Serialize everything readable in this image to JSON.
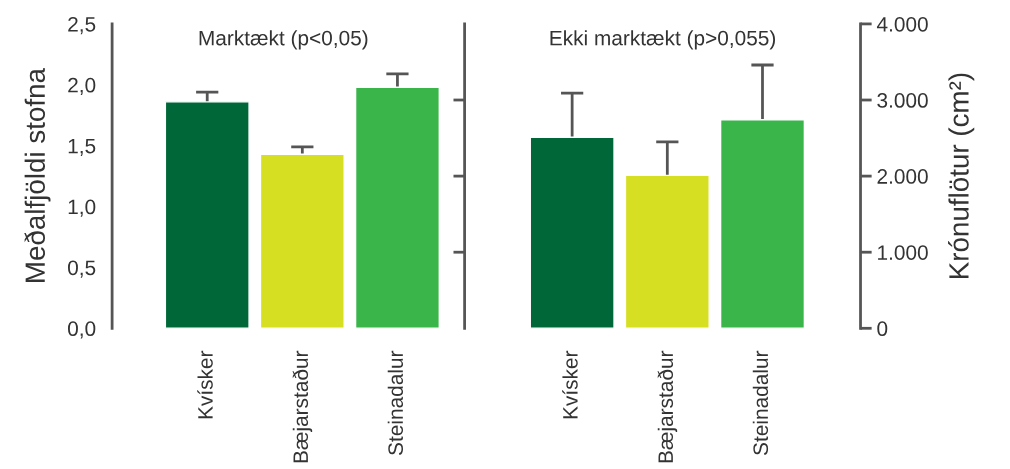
{
  "chart_data": [
    {
      "type": "bar",
      "ylabel": "Meðalfjöldi stofna",
      "annotations": [
        "Marktækt (p<0,05)"
      ],
      "categories": [
        "Kvísker",
        "Bæjarstaður",
        "Steinadalur"
      ],
      "series": [
        {
          "values": [
            1.86,
            1.43,
            1.98
          ],
          "colors": [
            "#006838",
            "#d7df23",
            "#39b54a"
          ],
          "errors": [
            0.08,
            0.06,
            0.11
          ]
        }
      ],
      "ylim": [
        0,
        2.5
      ],
      "yticks": [
        {
          "value": 0,
          "label": "0,0"
        },
        {
          "value": 0.5,
          "label": "0,5"
        },
        {
          "value": 1,
          "label": "1,0"
        },
        {
          "value": 1.5,
          "label": "1,5"
        },
        {
          "value": 2,
          "label": "2,0"
        },
        {
          "value": 2.5,
          "label": "2,5"
        }
      ],
      "grid": false,
      "legend": false
    },
    {
      "type": "bar",
      "y2label": "Krónuflötur (cm²)",
      "annotations": [
        "Ekki marktækt (p>0,055)"
      ],
      "categories": [
        "Kvísker",
        "Bæjarstaður",
        "Steinadalur"
      ],
      "series": [
        {
          "axis": "y2",
          "values": [
            2510,
            2010,
            2740
          ],
          "colors": [
            "#006838",
            "#d7df23",
            "#39b54a"
          ],
          "errors": [
            580,
            440,
            720
          ]
        }
      ],
      "y2lim": [
        0,
        4000
      ],
      "y2ticks": [
        0,
        {
          "value": 1000,
          "label": "1.000"
        },
        {
          "value": 2000,
          "label": "2.000"
        },
        {
          "value": 3000,
          "label": "3.000"
        },
        {
          "value": 4000,
          "label": "4.000"
        }
      ],
      "grid": false,
      "legend": false
    }
  ]
}
